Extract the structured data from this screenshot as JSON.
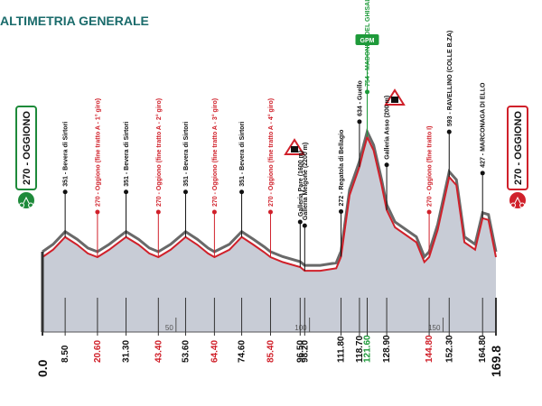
{
  "chart_data": {
    "type": "profile",
    "title": "ALTIMETRIA GENERALE",
    "xlim": [
      0,
      169.8
    ],
    "xticks": [
      50,
      100,
      150
    ],
    "profile": {
      "x": [
        0,
        4,
        8.5,
        13,
        17,
        20.6,
        25,
        31.3,
        36,
        40,
        43.4,
        48,
        53.6,
        58,
        62,
        64.4,
        70,
        74.6,
        79,
        83,
        85.4,
        90,
        96.5,
        98.2,
        104,
        110,
        111.8,
        115,
        118.7,
        120,
        121.6,
        124,
        127,
        128.9,
        132,
        136,
        140,
        143,
        144.8,
        148,
        152.3,
        155,
        158,
        162,
        164.8,
        167,
        169.8
      ],
      "values": [
        270,
        300,
        351,
        320,
        285,
        270,
        300,
        351,
        320,
        285,
        270,
        300,
        351,
        320,
        285,
        270,
        300,
        351,
        320,
        290,
        270,
        250,
        230,
        215,
        215,
        225,
        272,
        520,
        634,
        690,
        754,
        700,
        560,
        460,
        390,
        360,
        330,
        250,
        270,
        380,
        593,
        560,
        330,
        300,
        427,
        420,
        270
      ],
      "color": "#d0202a",
      "fill": "#c8ccd6"
    },
    "start": {
      "label": "270 - OGGIONO",
      "color": "#1e8a3a"
    },
    "finish": {
      "label": "270 - OGGIONO",
      "color": "#d0202a"
    },
    "gpm": "GPM",
    "waypoints": [
      {
        "km": {
          "value": 0,
          "label": "0.0"
        }
      },
      {
        "km": {
          "value": 8.5,
          "label": "8.50"
        },
        "name": "351 - Bevera di Sirtori",
        "color": "#111111"
      },
      {
        "km": {
          "value": 20.6,
          "label": "20.60"
        },
        "name": "270 - Oggiono (fine tratto A - 1° giro)",
        "color": "#d0202a"
      },
      {
        "km": {
          "value": 31.3,
          "label": "31.30"
        },
        "name": "351 - Bevera di Sirtori",
        "color": "#111111"
      },
      {
        "km": {
          "value": 43.4,
          "label": "43.40"
        },
        "name": "270 - Oggiono (fine tratto A - 2° giro)",
        "color": "#d0202a"
      },
      {
        "km": {
          "value": 53.6,
          "label": "53.60"
        },
        "name": "351 - Bevera di Sirtori",
        "color": "#111111"
      },
      {
        "km": {
          "value": 64.4,
          "label": "64.40"
        },
        "name": "270 - Oggiono (fine tratto A - 3° giro)",
        "color": "#d0202a"
      },
      {
        "km": {
          "value": 74.6,
          "label": "74.60"
        },
        "name": "351 - Bevera di Sirtori",
        "color": "#111111"
      },
      {
        "km": {
          "value": 85.4,
          "label": "85.40"
        },
        "name": "270 - Oggiono (fine tratto A - 4° giro)",
        "color": "#d0202a"
      },
      {
        "km": {
          "value": 96.5,
          "label": "96.50"
        },
        "name": "Galleria Pare (1600 m)",
        "color": "#111111"
      },
      {
        "km": {
          "value": 98.2,
          "label": "98.20"
        },
        "name": "Galleria Melgone (2200 m)",
        "color": "#111111"
      },
      {
        "km": {
          "value": 111.8,
          "label": "111.80"
        },
        "name": "272 - Regatola di Bellagio",
        "color": "#111111"
      },
      {
        "km": {
          "value": 118.7,
          "label": "118.70"
        },
        "name": "634 - Guello",
        "color": "#111111"
      },
      {
        "km": {
          "value": 121.6,
          "label": "121.60"
        },
        "name": "754 - MADONNA DEL GHISALLO",
        "color": "#1e9a3a"
      },
      {
        "km": {
          "value": 128.9,
          "label": "128.90"
        },
        "name": "Galleria Asso (200 m)",
        "color": "#111111"
      },
      {
        "km": {
          "value": 144.8,
          "label": "144.80"
        },
        "name": "270 - Oggiono (fine tratto I)",
        "color": "#d0202a"
      },
      {
        "km": {
          "value": 152.3,
          "label": "152.30"
        },
        "name": "593 - RAVELLINO (COLLE B.ZA)",
        "color": "#111111"
      },
      {
        "km": {
          "value": 164.8,
          "label": "164.80"
        },
        "name": "427 - MARCONAGA DI ELLO",
        "color": "#111111"
      },
      {
        "km": {
          "value": 169.8,
          "label": "169.8"
        }
      }
    ]
  }
}
